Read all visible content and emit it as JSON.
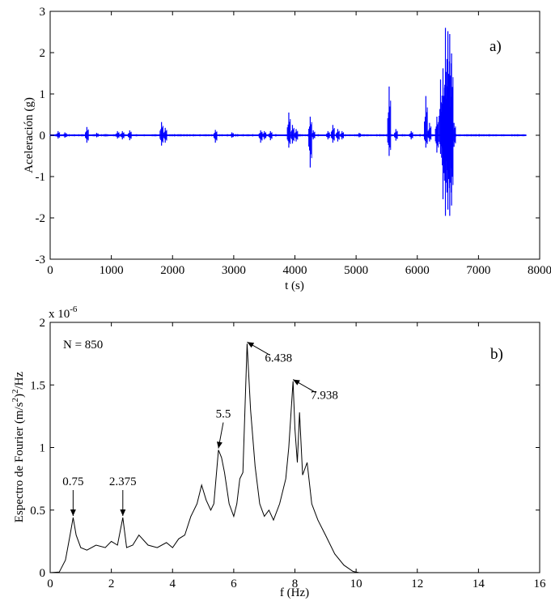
{
  "chart_data": [
    {
      "type": "line",
      "panel_label": "a)",
      "xlabel": "t (s)",
      "ylabel": "Aceleración (g)",
      "xlim": [
        0,
        8000
      ],
      "ylim": [
        -3,
        3
      ],
      "xticks": [
        0,
        1000,
        2000,
        3000,
        4000,
        5000,
        6000,
        7000,
        8000
      ],
      "yticks": [
        -3,
        -2,
        -1,
        0,
        1,
        2,
        3
      ],
      "grid": false,
      "series_color": "#0000ff",
      "baseline_noise": 0.02,
      "t_end": 7780,
      "spikes": [
        [
          130,
          0.1,
          -0.08
        ],
        [
          240,
          0.07,
          -0.06
        ],
        [
          600,
          0.2,
          -0.18
        ],
        [
          760,
          0.06,
          -0.05
        ],
        [
          1100,
          0.1,
          -0.08
        ],
        [
          1180,
          0.1,
          -0.1
        ],
        [
          1300,
          0.12,
          -0.12
        ],
        [
          1820,
          0.32,
          -0.25
        ],
        [
          1880,
          0.18,
          -0.18
        ],
        [
          2700,
          0.13,
          -0.18
        ],
        [
          2970,
          0.07,
          -0.06
        ],
        [
          3440,
          0.12,
          -0.18
        ],
        [
          3500,
          0.1,
          -0.1
        ],
        [
          3600,
          0.1,
          -0.12
        ],
        [
          3900,
          0.55,
          -0.3
        ],
        [
          3960,
          0.25,
          -0.2
        ],
        [
          4020,
          0.15,
          -0.15
        ],
        [
          4250,
          0.45,
          -0.78
        ],
        [
          4300,
          0.12,
          -0.1
        ],
        [
          4540,
          0.1,
          -0.1
        ],
        [
          4620,
          0.25,
          -0.18
        ],
        [
          4700,
          0.15,
          -0.15
        ],
        [
          4770,
          0.1,
          -0.1
        ],
        [
          5050,
          0.06,
          -0.05
        ],
        [
          5540,
          1.18,
          -0.5
        ],
        [
          5650,
          0.15,
          -0.13
        ],
        [
          5900,
          0.1,
          -0.1
        ],
        [
          6140,
          0.95,
          -0.3
        ],
        [
          6200,
          0.3,
          -0.15
        ],
        [
          6320,
          0.45,
          -0.42
        ],
        [
          6380,
          1.35,
          -0.45
        ],
        [
          6420,
          1.62,
          -1.55
        ],
        [
          6460,
          2.6,
          -1.95
        ],
        [
          6500,
          2.52,
          -1.8
        ],
        [
          6530,
          2.45,
          -1.95
        ],
        [
          6560,
          1.98,
          -1.7
        ],
        [
          6600,
          0.3,
          -0.28
        ]
      ]
    },
    {
      "type": "line",
      "panel_label": "b)",
      "xlabel": "f (Hz)",
      "ylabel": "Espectro de Fourier (m/s²)²/Hz",
      "ylabel_main": "Espectro de Fourier (m/s",
      "ylabel_sup1": "2",
      "ylabel_mid": ")",
      "ylabel_sup2": "2",
      "ylabel_end": "/Hz",
      "exponent_label": "x 10",
      "exponent_power": "-6",
      "text_note": "N = 850",
      "xlim": [
        0,
        16
      ],
      "ylim": [
        0,
        2
      ],
      "xticks": [
        0,
        2,
        4,
        6,
        8,
        10,
        12,
        14,
        16
      ],
      "ytick_values": [
        0,
        0.5,
        1,
        1.5,
        2
      ],
      "ytick_labels": [
        "0",
        "0.5",
        "1",
        "1.5",
        "2"
      ],
      "grid": false,
      "series_color": "#000000",
      "x": [
        0,
        0.3,
        0.5,
        0.65,
        0.75,
        0.85,
        1.0,
        1.2,
        1.5,
        1.8,
        2.0,
        2.2,
        2.375,
        2.5,
        2.7,
        2.9,
        3.2,
        3.5,
        3.8,
        4.0,
        4.2,
        4.4,
        4.6,
        4.8,
        4.95,
        5.1,
        5.25,
        5.35,
        5.5,
        5.6,
        5.7,
        5.85,
        6.0,
        6.1,
        6.2,
        6.3,
        6.438,
        6.55,
        6.7,
        6.85,
        7.0,
        7.15,
        7.3,
        7.5,
        7.7,
        7.8,
        7.938,
        8.0,
        8.08,
        8.15,
        8.25,
        8.4,
        8.55,
        8.75,
        9.0,
        9.3,
        9.6,
        9.9,
        10.1,
        11,
        12,
        13,
        14,
        15,
        16
      ],
      "values": [
        0,
        0.005,
        0.1,
        0.3,
        0.44,
        0.3,
        0.2,
        0.18,
        0.22,
        0.2,
        0.25,
        0.22,
        0.44,
        0.2,
        0.22,
        0.3,
        0.22,
        0.2,
        0.24,
        0.2,
        0.27,
        0.3,
        0.45,
        0.55,
        0.7,
        0.58,
        0.5,
        0.55,
        0.98,
        0.92,
        0.8,
        0.55,
        0.45,
        0.55,
        0.75,
        0.8,
        1.83,
        1.3,
        0.85,
        0.55,
        0.45,
        0.5,
        0.42,
        0.55,
        0.75,
        1.0,
        1.53,
        1.15,
        0.88,
        1.28,
        0.78,
        0.88,
        0.55,
        0.42,
        0.3,
        0.15,
        0.06,
        0.01,
        0,
        0,
        0,
        0,
        0,
        0,
        0
      ],
      "annotations": [
        {
          "label": "0.75",
          "x": 0.75,
          "y": 0.44
        },
        {
          "label": "2.375",
          "x": 2.375,
          "y": 0.44
        },
        {
          "label": "5.5",
          "x": 5.5,
          "y": 0.98
        },
        {
          "label": "6.438",
          "x": 6.438,
          "y": 1.83
        },
        {
          "label": "7.938",
          "x": 7.938,
          "y": 1.53
        }
      ]
    }
  ]
}
